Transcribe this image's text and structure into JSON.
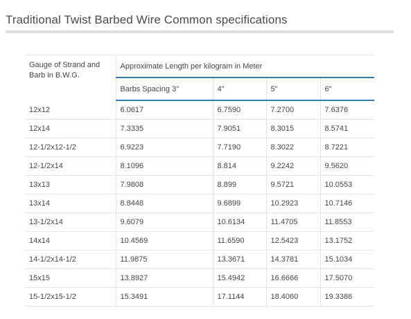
{
  "page": {
    "title": "Traditional Twist Barbed Wire Common specifications"
  },
  "table": {
    "gauge_header": "Gauge of Strand and Barb in B.W.G.",
    "length_header": "Approximate Length per kilogram in Meter",
    "spacing_headers": [
      "Barbs Spacing 3\"",
      "4\"",
      "5\"",
      "6\""
    ],
    "rows": [
      [
        "12x12",
        "6.0617",
        "6.7590",
        "7.2700",
        "7.6376"
      ],
      [
        "12x14",
        "7.3335",
        "7.9051",
        "8.3015",
        "8.5741"
      ],
      [
        "12-1/2x12-1/2",
        "6.9223",
        "7.7190",
        "8.3022",
        "8.7221"
      ],
      [
        "12-1/2x14",
        "8.1096",
        "8.814",
        "9.2242",
        "9.5620"
      ],
      [
        "13x13",
        "7.9808",
        "8.899",
        "9.5721",
        "10.0553"
      ],
      [
        "13x14",
        "8.8448",
        "9.6899",
        "10.2923",
        "10.7146"
      ],
      [
        "13-1/2x14",
        "9.6079",
        "10.6134",
        "11.4705",
        "11.8553"
      ],
      [
        "14x14",
        "10.4569",
        "11.6590",
        "12.5423",
        "13.1752"
      ],
      [
        "14-1/2x14-1/2",
        "11.9875",
        "13.3671",
        "14.3781",
        "15.1034"
      ],
      [
        "15x15",
        "13.8927",
        "15.4942",
        "16.6666",
        "17.5070"
      ],
      [
        "15-1/2x15-1/2",
        "15.3491",
        "17.1144",
        "18.4060",
        "19.3386"
      ]
    ]
  }
}
